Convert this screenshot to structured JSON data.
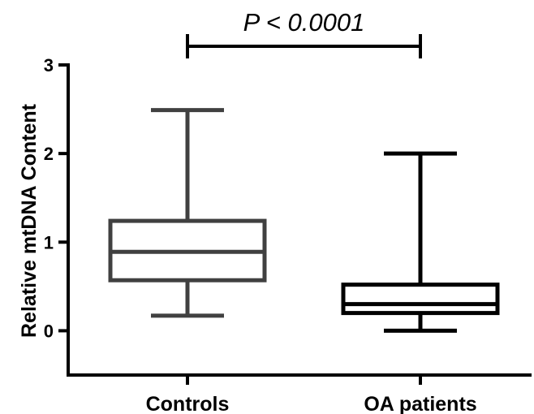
{
  "chart_data": {
    "type": "box",
    "ylabel": "Relative mtDNA Content",
    "ylim": [
      -0.5,
      3
    ],
    "yticks": [
      0,
      1,
      2,
      3
    ],
    "categories": [
      "Controls",
      "OA patients"
    ],
    "boxes": [
      {
        "name": "Controls",
        "min": 0.17,
        "q1": 0.57,
        "median": 0.89,
        "q3": 1.24,
        "max": 2.49,
        "color": "#404040"
      },
      {
        "name": "OA patients",
        "min": 0.0,
        "q1": 0.2,
        "median": 0.3,
        "q3": 0.52,
        "max": 2.0,
        "color": "#000000"
      }
    ],
    "annotation": {
      "text": "P < 0.0001",
      "between": [
        "Controls",
        "OA patients"
      ]
    },
    "grid": false,
    "legend": "none"
  }
}
